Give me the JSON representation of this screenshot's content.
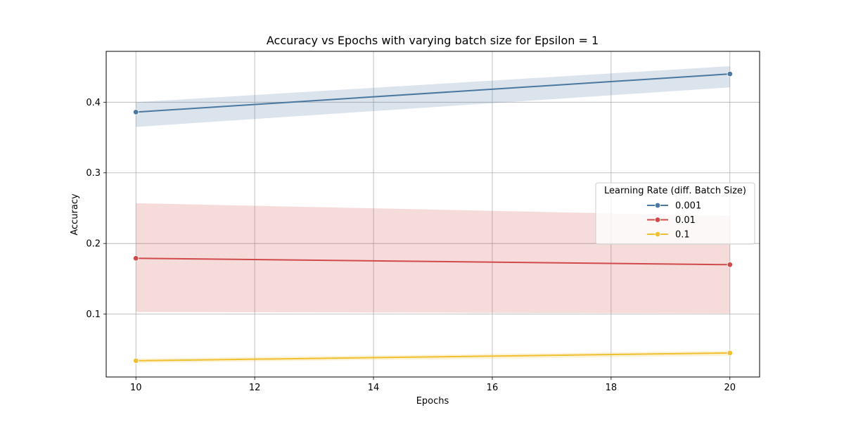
{
  "chart_data": {
    "type": "line",
    "title": "Accuracy vs Epochs with varying batch size for Epsilon = 1",
    "xlabel": "Epochs",
    "ylabel": "Accuracy",
    "xlim": [
      9.5,
      20.5
    ],
    "ylim": [
      0.011,
      0.472
    ],
    "xticks": [
      10,
      12,
      14,
      16,
      18,
      20
    ],
    "yticks": [
      0.1,
      0.2,
      0.3,
      0.4
    ],
    "xtick_labels": [
      "10",
      "12",
      "14",
      "16",
      "18",
      "20"
    ],
    "ytick_labels": [
      "0.1",
      "0.2",
      "0.3",
      "0.4"
    ],
    "grid": true,
    "legend": {
      "title": "Learning Rate (diff. Batch Size)",
      "placement": "center-right"
    },
    "x": [
      10,
      20
    ],
    "series": [
      {
        "name": "0.001",
        "color": "#4a78a0",
        "values": [
          0.386,
          0.44
        ],
        "lower": [
          0.365,
          0.421
        ],
        "upper": [
          0.4,
          0.451
        ]
      },
      {
        "name": "0.01",
        "color": "#d04a4a",
        "values": [
          0.179,
          0.17
        ],
        "lower": [
          0.103,
          0.101
        ],
        "upper": [
          0.257,
          0.239
        ]
      },
      {
        "name": "0.1",
        "color": "#f0c030",
        "values": [
          0.034,
          0.045
        ],
        "lower": [
          0.031,
          0.041
        ],
        "upper": [
          0.037,
          0.048
        ]
      }
    ]
  }
}
